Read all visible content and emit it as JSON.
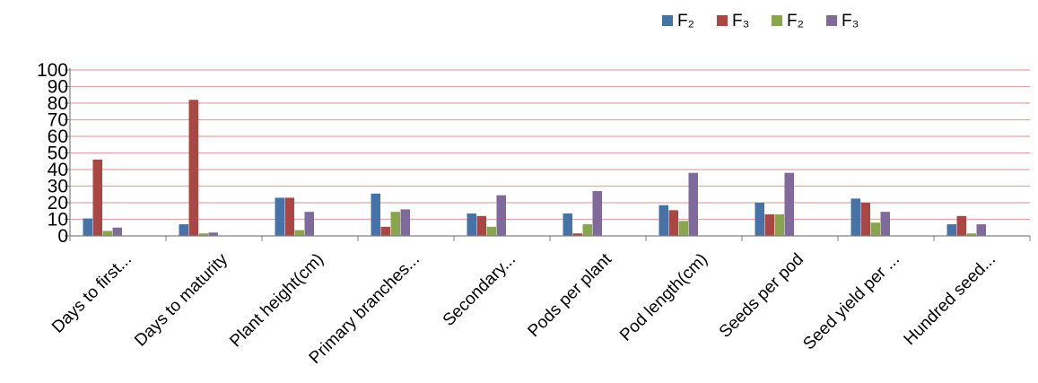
{
  "chart_data": {
    "type": "bar",
    "categories": [
      "Days to first...",
      "Days to maturity",
      "Plant height(cm)",
      "Primary branches...",
      "Secondary...",
      "Pods per plant",
      "Pod length(cm)",
      "Seeds per pod",
      "Seed yield per ...",
      "Hundred seed..."
    ],
    "series": [
      {
        "name": "F₂",
        "color": "#4572A7",
        "values": [
          10.5,
          7,
          23,
          25.5,
          13.5,
          13.5,
          18.5,
          20,
          22.5,
          7
        ]
      },
      {
        "name": "F₃",
        "color": "#AA4643",
        "values": [
          46,
          82,
          23,
          5.5,
          12,
          1.5,
          15.5,
          13,
          20,
          12
        ]
      },
      {
        "name": "F₂",
        "color": "#89A54E",
        "values": [
          3,
          1.5,
          3.5,
          14.5,
          5.5,
          7,
          9,
          13,
          8,
          1.5
        ]
      },
      {
        "name": "F₃",
        "color": "#80699B",
        "values": [
          5,
          2,
          14.5,
          16,
          24.5,
          27,
          38,
          38,
          14.5,
          7
        ]
      }
    ],
    "title": "",
    "xlabel": "",
    "ylabel": "",
    "ylim": [
      0,
      100
    ],
    "yticks": [
      0,
      10,
      20,
      30,
      40,
      50,
      60,
      70,
      80,
      90,
      100
    ],
    "grid": true,
    "gridline_color": "#E8A5A5",
    "legend_position": "top-right"
  }
}
